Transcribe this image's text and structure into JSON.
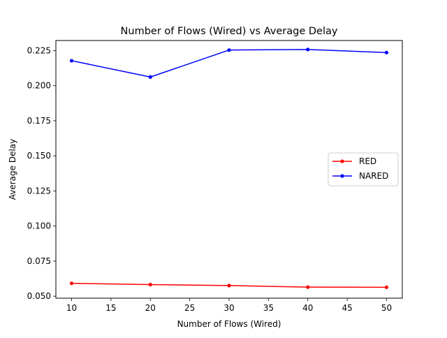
{
  "chart_data": {
    "type": "line",
    "title": "Number of Flows (Wired)  vs Average Delay",
    "xlabel": "Number of Flows (Wired)",
    "ylabel": "Average Delay",
    "x": [
      10,
      20,
      30,
      40,
      50
    ],
    "xlim": [
      8,
      52
    ],
    "ylim": [
      0.0486,
      0.2322
    ],
    "xticks": [
      "10",
      "15",
      "20",
      "25",
      "30",
      "35",
      "40",
      "45",
      "50"
    ],
    "yticks": [
      "0.050",
      "0.075",
      "0.100",
      "0.125",
      "0.150",
      "0.175",
      "0.200",
      "0.225"
    ],
    "series": [
      {
        "name": "RED",
        "color": "#ff0000",
        "marker": "dot",
        "values": [
          0.0592,
          0.0583,
          0.0576,
          0.0565,
          0.0564
        ]
      },
      {
        "name": "NARED",
        "color": "#0000ff",
        "marker": "dot",
        "values": [
          0.2178,
          0.2062,
          0.2254,
          0.2258,
          0.2236
        ]
      }
    ],
    "grid": false,
    "legend": "center-right"
  }
}
